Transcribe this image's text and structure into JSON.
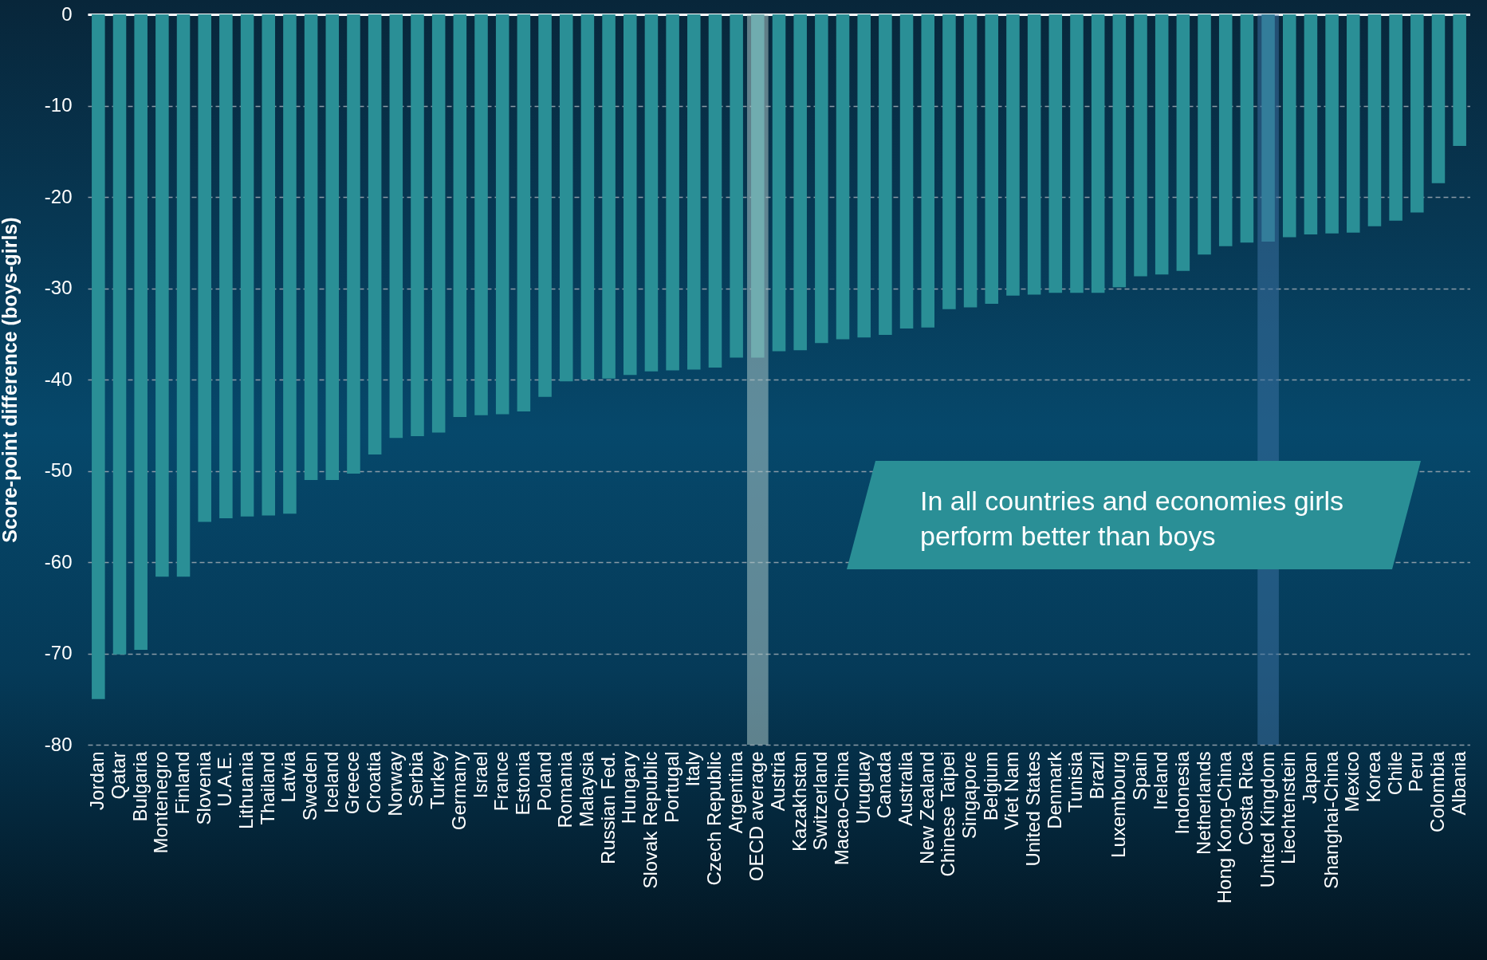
{
  "chart_data": {
    "type": "bar",
    "ylabel": "Score-point difference (boys-girls)",
    "categories": [
      "Jordan",
      "Qatar",
      "Bulgaria",
      "Montenegro",
      "Finland",
      "Slovenia",
      "U.A.E.",
      "Lithuania",
      "Thailand",
      "Latvia",
      "Sweden",
      "Iceland",
      "Greece",
      "Croatia",
      "Norway",
      "Serbia",
      "Turkey",
      "Germany",
      "Israel",
      "France",
      "Estonia",
      "Poland",
      "Romania",
      "Malaysia",
      "Russian Fed.",
      "Hungary",
      "Slovak Republic",
      "Portugal",
      "Italy",
      "Czech Republic",
      "Argentina",
      "OECD average",
      "Austria",
      "Kazakhstan",
      "Switzerland",
      "Macao-China",
      "Uruguay",
      "Canada",
      "Australia",
      "New Zealand",
      "Chinese Taipei",
      "Singapore",
      "Belgium",
      "Viet Nam",
      "United States",
      "Denmark",
      "Tunisia",
      "Brazil",
      "Luxembourg",
      "Spain",
      "Ireland",
      "Indonesia",
      "Netherlands",
      "Hong Kong-China",
      "Costa Rica",
      "United Kingdom",
      "Liechtenstein",
      "Japan",
      "Shanghai-China",
      "Mexico",
      "Korea",
      "Chile",
      "Peru",
      "Colombia",
      "Albania"
    ],
    "values": [
      -75,
      -70.1,
      -69.6,
      -61.6,
      -61.6,
      -55.6,
      -55.2,
      -55,
      -54.9,
      -54.7,
      -51,
      -51,
      -50.3,
      -48.2,
      -46.4,
      -46.2,
      -45.8,
      -44.1,
      -43.9,
      -43.8,
      -43.5,
      -41.9,
      -40.2,
      -40,
      -39.9,
      -39.5,
      -39.1,
      -39,
      -38.9,
      -38.7,
      -37.6,
      -37.6,
      -36.9,
      -36.8,
      -36,
      -35.6,
      -35.4,
      -35.1,
      -34.4,
      -34.3,
      -32.3,
      -32.1,
      -31.7,
      -30.8,
      -30.7,
      -30.5,
      -30.5,
      -30.5,
      -29.9,
      -28.7,
      -28.5,
      -28.1,
      -26.3,
      -25.4,
      -25,
      -24.9,
      -24.4,
      -24.1,
      -24,
      -23.9,
      -23.2,
      -22.6,
      -21.7,
      -18.5,
      -14.4
    ],
    "color": "#2a8f96",
    "ylim": [
      -80,
      0
    ],
    "yticks": [
      -80,
      -70,
      -60,
      -50,
      -40,
      -30,
      -20,
      -10,
      0
    ],
    "grid": "y",
    "bands": [
      {
        "axis": "x",
        "from": "OECD average",
        "to": "OECD average",
        "color": "#a9c4c4"
      },
      {
        "axis": "x",
        "from": "United Kingdom",
        "to": "United Kingdom",
        "color": "#3a6f9e"
      }
    ],
    "annotations": [
      "In all countries and economies girls perform better than boys"
    ]
  }
}
